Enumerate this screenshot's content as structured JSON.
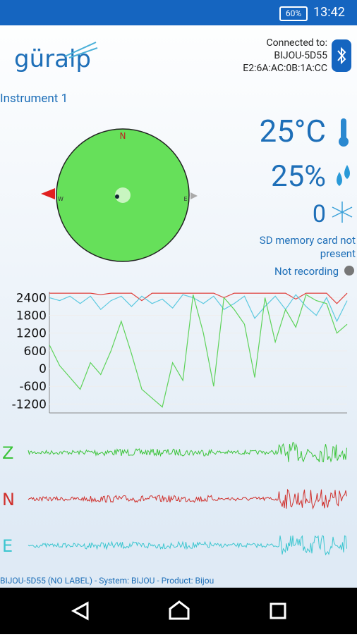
{
  "status_bar": {
    "battery": "60%",
    "time": "13:42"
  },
  "header": {
    "logo": "güralp",
    "connected_label": "Connected to:",
    "device_name": "BIJOU-5D55",
    "device_address": "E2:6A:AC:0B:1A:CC"
  },
  "instrument": "Instrument 1",
  "compass": {
    "north": "N",
    "west": "W",
    "east": "E"
  },
  "readings": {
    "temperature": "25°C",
    "humidity": "25%",
    "count": "0",
    "sd_card": "SD memory card not present",
    "recording": "Not recording"
  },
  "chart_data": {
    "type": "line",
    "categories": [
      null,
      null,
      null,
      null,
      null,
      null,
      null,
      null,
      null,
      null,
      null,
      null,
      null,
      null,
      null,
      null,
      null,
      null,
      null,
      null,
      null,
      null,
      null,
      null,
      null,
      null,
      null,
      null,
      null,
      null
    ],
    "ylim": [
      -1500,
      2600
    ],
    "yticks": [
      2400,
      1800,
      1200,
      600,
      0,
      -600,
      -1200
    ],
    "series": [
      {
        "name": "red",
        "color": "#e0403c",
        "values": [
          2550,
          2550,
          2550,
          2550,
          2550,
          2500,
          2550,
          2550,
          2550,
          2300,
          2550,
          2550,
          2550,
          2550,
          2550,
          2550,
          2550,
          2400,
          2550,
          2550,
          2550,
          2550,
          2550,
          2550,
          2350,
          2550,
          2550,
          2550,
          2200,
          2550
        ]
      },
      {
        "name": "cyan",
        "color": "#5cc9e0",
        "values": [
          2400,
          2300,
          2450,
          2200,
          2450,
          2000,
          2300,
          2450,
          2100,
          2450,
          2200,
          2350,
          2050,
          2500,
          2400,
          2200,
          2450,
          2000,
          2200,
          2450,
          1700,
          2100,
          2450,
          2000,
          2500,
          2100,
          1800,
          2400,
          1600,
          2300
        ]
      },
      {
        "name": "green",
        "color": "#5ed35a",
        "values": [
          800,
          100,
          -300,
          -700,
          200,
          -200,
          600,
          1600,
          500,
          -700,
          -1000,
          -1300,
          200,
          -400,
          2500,
          1200,
          -600,
          2400,
          2000,
          1500,
          -300,
          2400,
          900,
          2000,
          1400,
          2500,
          2300,
          2200,
          1200,
          1500
        ]
      }
    ]
  },
  "channels": [
    {
      "label": "Z",
      "color": "#3cc43a"
    },
    {
      "label": "N",
      "color": "#d0302c"
    },
    {
      "label": "E",
      "color": "#3cc6d0"
    }
  ],
  "footer": "BIJOU-5D55 (NO LABEL) - System: BIJOU - Product: Bijou"
}
